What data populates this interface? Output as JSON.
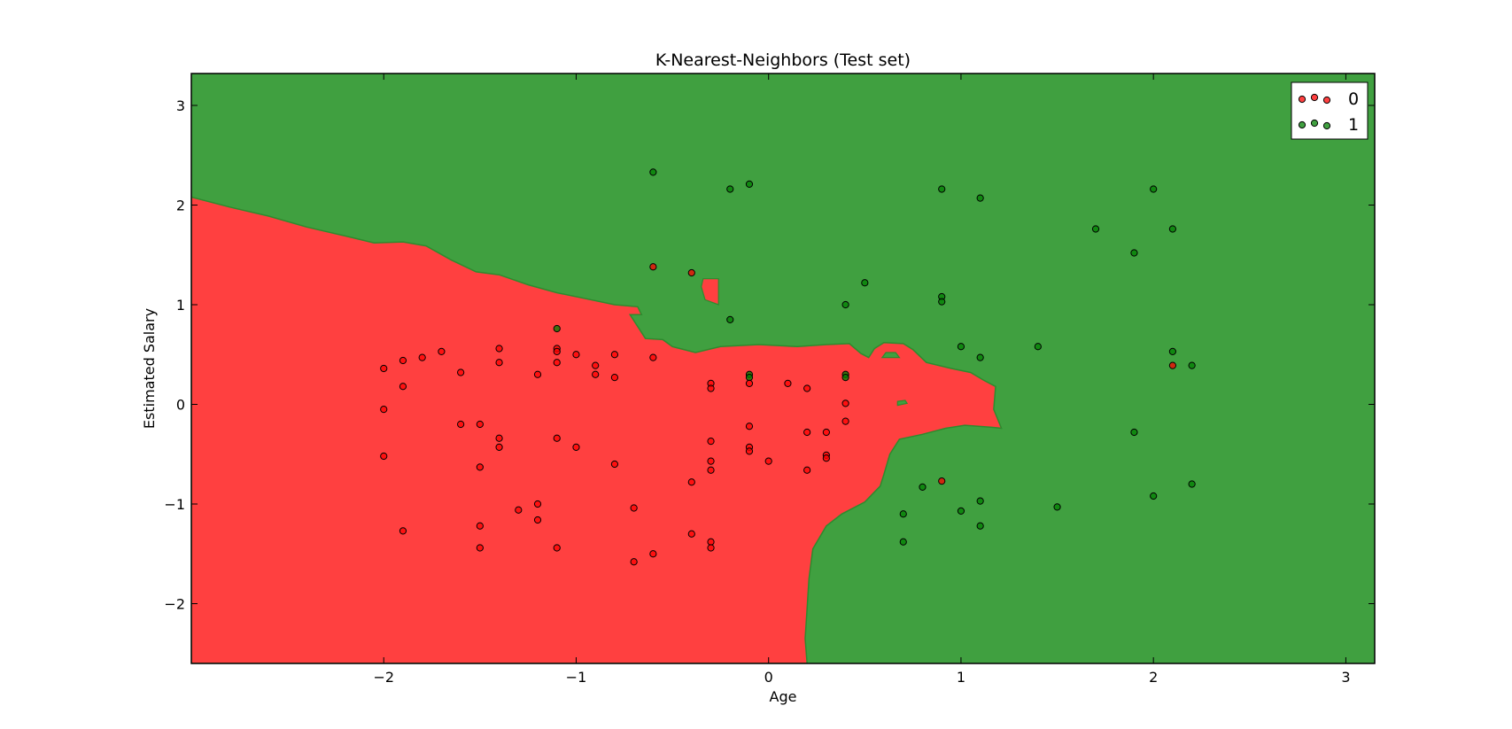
{
  "chart_data": {
    "type": "scatter",
    "title": "K-Nearest-Neighbors (Test set)",
    "xlabel": "Age",
    "ylabel": "Estimated Salary",
    "xlim": [
      -3.0,
      3.15
    ],
    "ylim": [
      -2.6,
      3.32
    ],
    "xticks": [
      -2,
      -1,
      0,
      1,
      2,
      3
    ],
    "yticks": [
      -2,
      -1,
      0,
      1,
      2,
      3
    ],
    "xtick_labels": [
      "−2",
      "−1",
      "0",
      "1",
      "2",
      "3"
    ],
    "ytick_labels": [
      "−2",
      "−1",
      "0",
      "1",
      "2",
      "3"
    ],
    "grid": false,
    "legend_position": "top-right",
    "background_color": "#ffffff",
    "region_colors": {
      "0": "#ff4040",
      "1": "#40a040"
    },
    "point_colors": {
      "0": "#ff0000",
      "1": "#008000"
    },
    "point_opacity": 0.75,
    "region_boundary_class0": [
      [
        -3.0,
        2.08
      ],
      [
        -2.8,
        1.98
      ],
      [
        -2.6,
        1.89
      ],
      [
        -2.4,
        1.78
      ],
      [
        -2.2,
        1.69
      ],
      [
        -2.05,
        1.62
      ],
      [
        -1.9,
        1.63
      ],
      [
        -1.78,
        1.59
      ],
      [
        -1.65,
        1.45
      ],
      [
        -1.52,
        1.33
      ],
      [
        -1.4,
        1.3
      ],
      [
        -1.25,
        1.2
      ],
      [
        -1.1,
        1.12
      ],
      [
        -0.95,
        1.06
      ],
      [
        -0.8,
        1.0
      ],
      [
        -0.68,
        0.98
      ],
      [
        -0.66,
        0.9
      ],
      [
        -0.72,
        0.9
      ],
      [
        -0.67,
        0.75
      ],
      [
        -0.64,
        0.66
      ],
      [
        -0.55,
        0.65
      ],
      [
        -0.5,
        0.58
      ],
      [
        -0.38,
        0.52
      ],
      [
        -0.25,
        0.58
      ],
      [
        -0.05,
        0.6
      ],
      [
        0.15,
        0.58
      ],
      [
        0.3,
        0.6
      ],
      [
        0.42,
        0.61
      ],
      [
        0.48,
        0.51
      ],
      [
        0.52,
        0.47
      ],
      [
        0.55,
        0.56
      ],
      [
        0.6,
        0.62
      ],
      [
        0.7,
        0.61
      ],
      [
        0.75,
        0.55
      ],
      [
        0.82,
        0.42
      ],
      [
        0.95,
        0.36
      ],
      [
        1.05,
        0.32
      ],
      [
        1.12,
        0.24
      ],
      [
        1.18,
        0.18
      ],
      [
        1.17,
        -0.05
      ],
      [
        1.21,
        -0.24
      ],
      [
        1.16,
        -0.23
      ],
      [
        1.02,
        -0.21
      ],
      [
        0.92,
        -0.24
      ],
      [
        0.8,
        -0.3
      ],
      [
        0.68,
        -0.35
      ],
      [
        0.63,
        -0.5
      ],
      [
        0.6,
        -0.7
      ],
      [
        0.58,
        -0.82
      ],
      [
        0.5,
        -0.98
      ],
      [
        0.38,
        -1.1
      ],
      [
        0.3,
        -1.22
      ],
      [
        0.23,
        -1.45
      ],
      [
        0.21,
        -1.75
      ],
      [
        0.2,
        -2.05
      ],
      [
        0.19,
        -2.35
      ],
      [
        0.2,
        -2.6
      ],
      [
        -3.0,
        -2.6
      ]
    ],
    "region_islands": [
      {
        "class": "0",
        "polygon": [
          [
            -0.34,
            1.26
          ],
          [
            -0.26,
            1.26
          ],
          [
            -0.26,
            1.0
          ],
          [
            -0.33,
            1.05
          ],
          [
            -0.35,
            1.18
          ]
        ]
      },
      {
        "class": "1",
        "polygon": [
          [
            0.59,
            0.47
          ],
          [
            0.68,
            0.47
          ],
          [
            0.66,
            0.52
          ],
          [
            0.61,
            0.52
          ]
        ]
      },
      {
        "class": "1",
        "polygon": [
          [
            0.67,
            0.03
          ],
          [
            0.71,
            0.04
          ],
          [
            0.72,
            0.01
          ],
          [
            0.67,
            -0.01
          ]
        ]
      }
    ],
    "series": [
      {
        "name": "0",
        "color": "#ff0000",
        "points": [
          [
            -0.6,
            1.38
          ],
          [
            -0.4,
            1.32
          ],
          [
            0.9,
            -0.77
          ],
          [
            2.1,
            0.39
          ]
        ]
      },
      {
        "name": "1",
        "color": "#008000",
        "points": [
          [
            -0.6,
            2.33
          ],
          [
            -0.2,
            2.16
          ],
          [
            -0.1,
            2.21
          ],
          [
            0.9,
            2.16
          ],
          [
            1.1,
            2.07
          ],
          [
            2.0,
            2.16
          ],
          [
            1.7,
            1.76
          ],
          [
            2.1,
            1.76
          ],
          [
            1.9,
            1.52
          ],
          [
            0.5,
            1.22
          ],
          [
            0.9,
            1.08
          ],
          [
            0.9,
            1.03
          ],
          [
            0.4,
            1.0
          ],
          [
            -0.2,
            0.85
          ],
          [
            1.0,
            0.58
          ],
          [
            1.4,
            0.58
          ],
          [
            1.1,
            0.47
          ],
          [
            2.1,
            0.53
          ],
          [
            2.2,
            0.39
          ],
          [
            1.9,
            -0.28
          ],
          [
            0.8,
            -0.83
          ],
          [
            2.2,
            -0.8
          ],
          [
            2.0,
            -0.92
          ],
          [
            1.1,
            -0.97
          ],
          [
            1.5,
            -1.03
          ],
          [
            1.0,
            -1.07
          ],
          [
            0.7,
            -1.1
          ],
          [
            1.1,
            -1.22
          ],
          [
            0.7,
            -1.38
          ]
        ]
      }
    ],
    "points_in_red_region": [
      [
        -1.1,
        0.76
      ],
      [
        -2.0,
        0.36
      ],
      [
        -1.9,
        0.44
      ],
      [
        -1.8,
        0.47
      ],
      [
        -1.7,
        0.53
      ],
      [
        -1.6,
        0.32
      ],
      [
        -1.4,
        0.56
      ],
      [
        -1.4,
        0.42
      ],
      [
        -1.2,
        0.3
      ],
      [
        -1.1,
        0.56
      ],
      [
        -1.1,
        0.53
      ],
      [
        -1.1,
        0.42
      ],
      [
        -1.0,
        0.5
      ],
      [
        -0.9,
        0.39
      ],
      [
        -0.9,
        0.3
      ],
      [
        -0.8,
        0.5
      ],
      [
        -0.8,
        0.27
      ],
      [
        -0.6,
        0.47
      ],
      [
        -1.9,
        0.18
      ],
      [
        -2.0,
        -0.05
      ],
      [
        -1.6,
        -0.2
      ],
      [
        -1.5,
        -0.2
      ],
      [
        -1.4,
        -0.34
      ],
      [
        -1.4,
        -0.43
      ],
      [
        -1.1,
        -0.34
      ],
      [
        -1.0,
        -0.43
      ],
      [
        -2.0,
        -0.52
      ],
      [
        -1.5,
        -0.63
      ],
      [
        -0.8,
        -0.6
      ],
      [
        -1.3,
        -1.06
      ],
      [
        -1.2,
        -1.0
      ],
      [
        -1.2,
        -1.16
      ],
      [
        -1.5,
        -1.22
      ],
      [
        -1.9,
        -1.27
      ],
      [
        -1.5,
        -1.44
      ],
      [
        -1.1,
        -1.44
      ],
      [
        -0.7,
        -1.04
      ],
      [
        -0.7,
        -1.58
      ],
      [
        -0.6,
        -1.5
      ],
      [
        -0.4,
        -0.78
      ],
      [
        -0.4,
        -1.3
      ],
      [
        -0.3,
        -1.38
      ],
      [
        -0.3,
        -1.44
      ],
      [
        -0.3,
        0.21
      ],
      [
        -0.3,
        0.16
      ],
      [
        -0.1,
        0.3
      ],
      [
        -0.1,
        0.27
      ],
      [
        -0.1,
        0.21
      ],
      [
        0.1,
        0.21
      ],
      [
        0.2,
        0.16
      ],
      [
        0.4,
        0.3
      ],
      [
        0.4,
        0.27
      ],
      [
        0.4,
        0.01
      ],
      [
        0.4,
        -0.17
      ],
      [
        -0.1,
        -0.22
      ],
      [
        -0.3,
        -0.37
      ],
      [
        0.2,
        -0.28
      ],
      [
        0.3,
        -0.28
      ],
      [
        -0.1,
        -0.43
      ],
      [
        -0.1,
        -0.47
      ],
      [
        0.3,
        -0.51
      ],
      [
        0.3,
        -0.54
      ],
      [
        0.0,
        -0.57
      ],
      [
        -0.3,
        -0.57
      ],
      [
        -0.3,
        -0.66
      ],
      [
        0.2,
        -0.66
      ]
    ],
    "points_in_red_region_colors": [
      "#008000",
      "#ff0000",
      "#ff0000",
      "#ff0000",
      "#ff0000",
      "#ff0000",
      "#ff0000",
      "#ff0000",
      "#ff0000",
      "#ff0000",
      "#ff0000",
      "#ff0000",
      "#ff0000",
      "#ff0000",
      "#ff0000",
      "#ff0000",
      "#ff0000",
      "#ff0000",
      "#ff0000",
      "#ff0000",
      "#ff0000",
      "#ff0000",
      "#ff0000",
      "#ff0000",
      "#ff0000",
      "#ff0000",
      "#ff0000",
      "#ff0000",
      "#ff0000",
      "#ff0000",
      "#ff0000",
      "#ff0000",
      "#ff0000",
      "#ff0000",
      "#ff0000",
      "#ff0000",
      "#ff0000",
      "#ff0000",
      "#ff0000",
      "#ff0000",
      "#ff0000",
      "#ff0000",
      "#ff0000",
      "#ff0000",
      "#ff0000",
      "#008000",
      "#008000",
      "#ff0000",
      "#ff0000",
      "#ff0000",
      "#008000",
      "#008000",
      "#ff0000",
      "#ff0000",
      "#ff0000",
      "#ff0000",
      "#ff0000",
      "#ff0000",
      "#ff0000",
      "#ff0000",
      "#ff0000",
      "#ff0000",
      "#ff0000",
      "#ff0000",
      "#ff0000",
      "#ff0000"
    ],
    "legend": [
      {
        "label": "0",
        "color": "#ff0000"
      },
      {
        "label": "1",
        "color": "#008000"
      }
    ]
  }
}
